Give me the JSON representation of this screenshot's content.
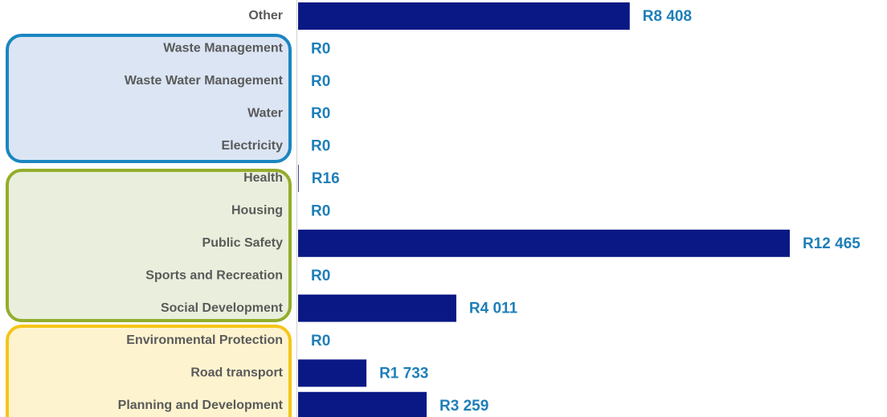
{
  "chart_data": {
    "type": "barh",
    "categories": [
      "Other",
      "Waste Management",
      "Waste Water Management",
      "Water",
      "Electricity",
      "Health",
      "Housing",
      "Public Safety",
      "Sports and Recreation",
      "Social Development",
      "Environmental Protection",
      "Road transport",
      "Planning and Development"
    ],
    "values": [
      8408,
      0,
      0,
      0,
      0,
      16,
      0,
      12465,
      0,
      4011,
      0,
      1733,
      3259
    ],
    "value_labels": [
      "R8 408",
      "R0",
      "R0",
      "R0",
      "R0",
      "R16",
      "R0",
      "R12 465",
      "R0",
      "R4 011",
      "R0",
      "R1 733",
      "R3 259"
    ],
    "color": "#0a1885"
  }
}
